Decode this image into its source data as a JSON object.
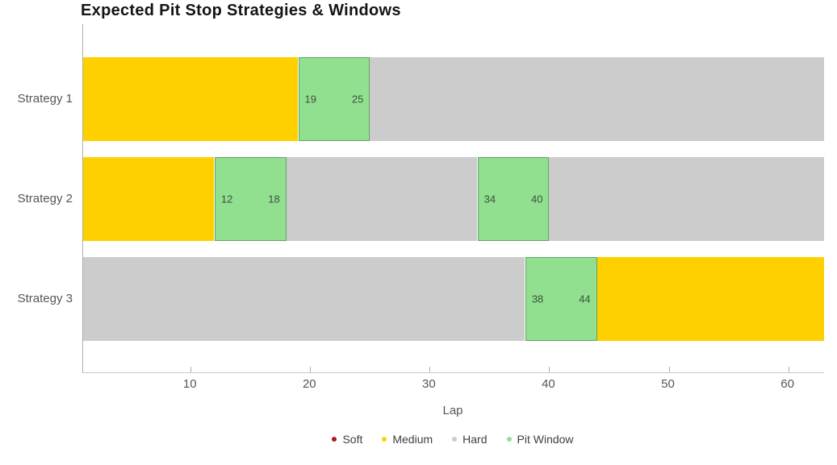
{
  "chart_data": {
    "type": "bar",
    "orientation": "horizontal-stacked",
    "title": "Expected Pit Stop Strategies & Windows",
    "xlabel": "Lap",
    "x_range": [
      1,
      63
    ],
    "x_ticks": [
      10,
      20,
      30,
      40,
      50,
      60
    ],
    "grid": false,
    "legend_position": "bottom-center",
    "colors": {
      "Soft": "#B11818",
      "Medium": "#FFD000",
      "Hard": "#CCCCCC",
      "Pit Window": "#90E090"
    },
    "legend": [
      "Soft",
      "Medium",
      "Hard",
      "Pit Window"
    ],
    "categories": [
      "Strategy 1",
      "Strategy 2",
      "Strategy 3"
    ],
    "strategies": [
      {
        "name": "Strategy 1",
        "segments": [
          {
            "compound": "Medium",
            "start": 1,
            "end": 19
          },
          {
            "compound": "Pit Window",
            "start": 19,
            "end": 25,
            "labeled": true
          },
          {
            "compound": "Hard",
            "start": 25,
            "end": 63
          }
        ]
      },
      {
        "name": "Strategy 2",
        "segments": [
          {
            "compound": "Medium",
            "start": 1,
            "end": 12
          },
          {
            "compound": "Pit Window",
            "start": 12,
            "end": 18,
            "labeled": true
          },
          {
            "compound": "Hard",
            "start": 18,
            "end": 34
          },
          {
            "compound": "Pit Window",
            "start": 34,
            "end": 40,
            "labeled": true
          },
          {
            "compound": "Hard",
            "start": 40,
            "end": 63
          }
        ]
      },
      {
        "name": "Strategy 3",
        "segments": [
          {
            "compound": "Hard",
            "start": 1,
            "end": 38
          },
          {
            "compound": "Pit Window",
            "start": 38,
            "end": 44,
            "labeled": true
          },
          {
            "compound": "Medium",
            "start": 44,
            "end": 63
          }
        ]
      }
    ]
  }
}
